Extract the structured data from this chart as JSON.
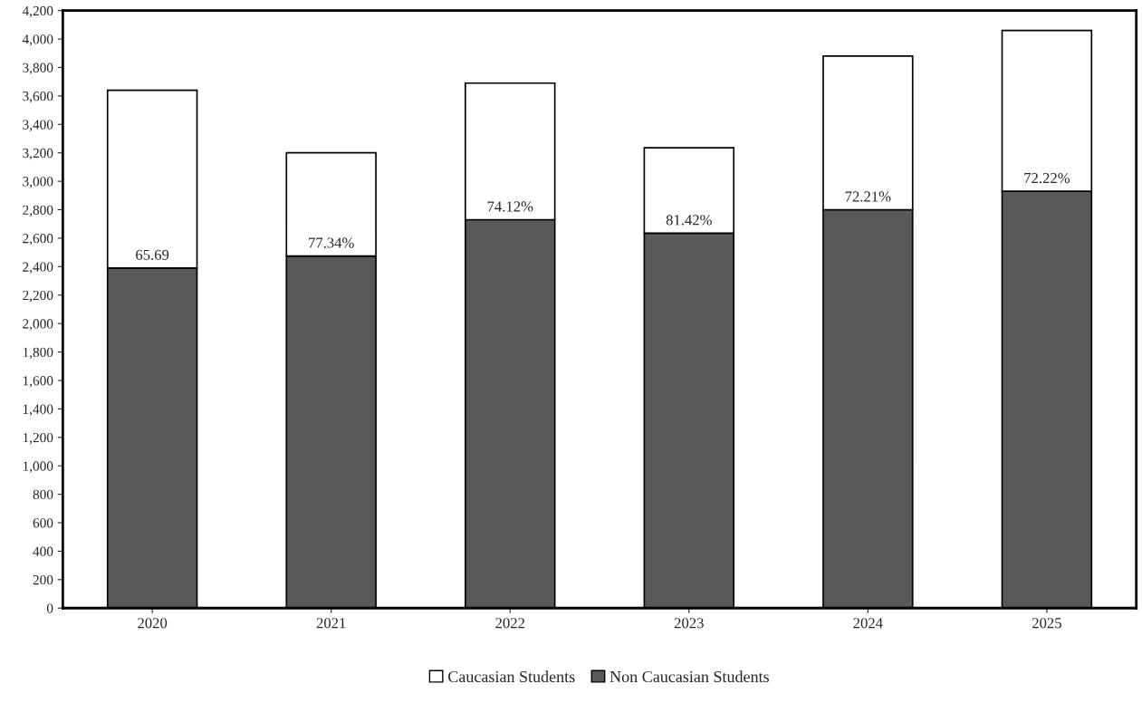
{
  "chart_data": {
    "type": "bar",
    "stacked": true,
    "categories": [
      "2020",
      "2021",
      "2022",
      "2023",
      "2024",
      "2025"
    ],
    "series": [
      {
        "name": "Non Caucasian Students",
        "color": "#595959",
        "values": [
          2390,
          2475,
          2730,
          2635,
          2800,
          2930
        ]
      },
      {
        "name": "Caucasian Students",
        "color": "#ffffff",
        "values": [
          1250,
          725,
          960,
          600,
          1080,
          1130
        ]
      }
    ],
    "ylim": [
      0,
      4200
    ],
    "yticks": [
      {
        "value": 0,
        "label": "0"
      },
      {
        "value": 200,
        "label": "200"
      },
      {
        "value": 400,
        "label": "400"
      },
      {
        "value": 600,
        "label": "600"
      },
      {
        "value": 800,
        "label": "800"
      },
      {
        "value": 1000,
        "label": "1,000"
      },
      {
        "value": 1200,
        "label": "1,200"
      },
      {
        "value": 1400,
        "label": "1,400"
      },
      {
        "value": 1600,
        "label": "1,600"
      },
      {
        "value": 1800,
        "label": "1,800"
      },
      {
        "value": 2000,
        "label": "2,000"
      },
      {
        "value": 2200,
        "label": "2,200"
      },
      {
        "value": 2400,
        "label": "2,400"
      },
      {
        "value": 2600,
        "label": "2,600"
      },
      {
        "value": 2800,
        "label": "2,800"
      },
      {
        "value": 3000,
        "label": "3,000"
      },
      {
        "value": 3200,
        "label": "3,200"
      },
      {
        "value": 3400,
        "label": "3,400"
      },
      {
        "value": 3600,
        "label": "3,600"
      },
      {
        "value": 3800,
        "label": "3,800"
      },
      {
        "value": 4000,
        "label": "4,000"
      },
      {
        "value": 4200,
        "label": "4,200"
      }
    ],
    "annotations": [
      {
        "text": "65.69",
        "x": "2020",
        "y": 2390
      },
      {
        "text": "77.34%",
        "x": "2021",
        "y": 2475
      },
      {
        "text": "74.12%",
        "x": "2022",
        "y": 2730
      },
      {
        "text": "81.42%",
        "x": "2023",
        "y": 2635
      },
      {
        "text": "72.21%",
        "x": "2024",
        "y": 2800
      },
      {
        "text": "72.22%",
        "x": "2025",
        "y": 2930
      }
    ],
    "grid": false,
    "legend": "bottom"
  }
}
